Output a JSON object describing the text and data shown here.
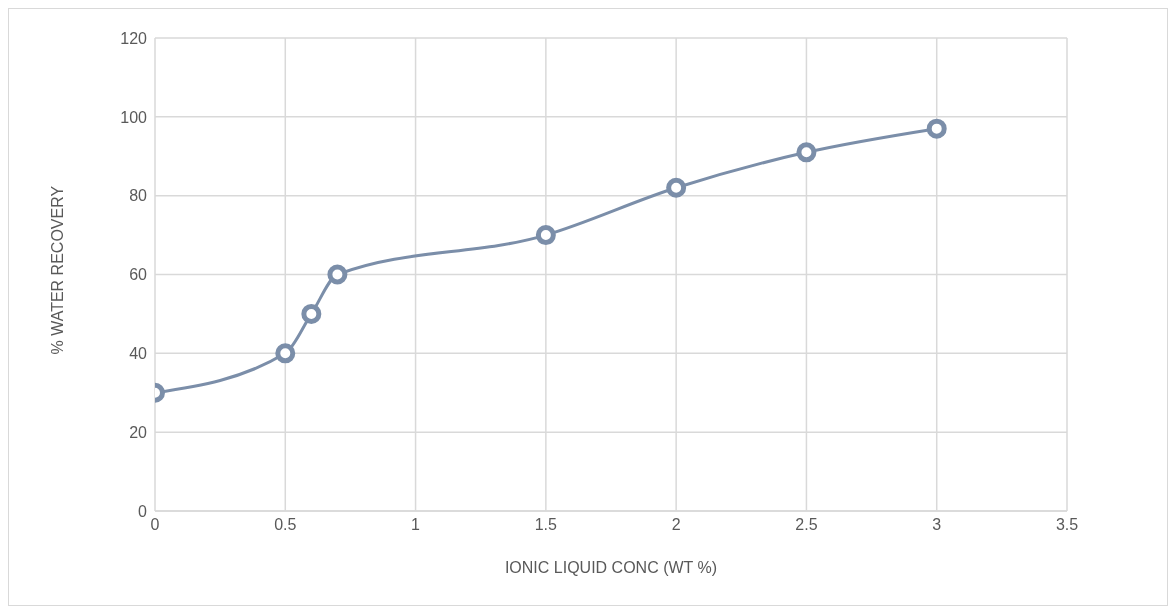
{
  "chart_data": {
    "type": "line",
    "xlabel": "IONIC LIQUID CONC (WT %)",
    "ylabel": "% WATER RECOVERY",
    "x": [
      0,
      0.5,
      0.6,
      0.7,
      1.5,
      2,
      2.5,
      3
    ],
    "series": [
      {
        "color": "#7b8ea9",
        "values": [
          30,
          40,
          50,
          60,
          70,
          82,
          91,
          97
        ]
      }
    ],
    "xlim": [
      0,
      3.5
    ],
    "xticks": [
      0,
      0.5,
      1,
      1.5,
      2,
      2.5,
      3,
      3.5
    ],
    "ylim": [
      0,
      120
    ],
    "yticks": [
      0,
      20,
      40,
      60,
      80,
      100,
      120
    ],
    "grid": true,
    "legend": false,
    "marker": "circle",
    "line_style": "solid"
  }
}
